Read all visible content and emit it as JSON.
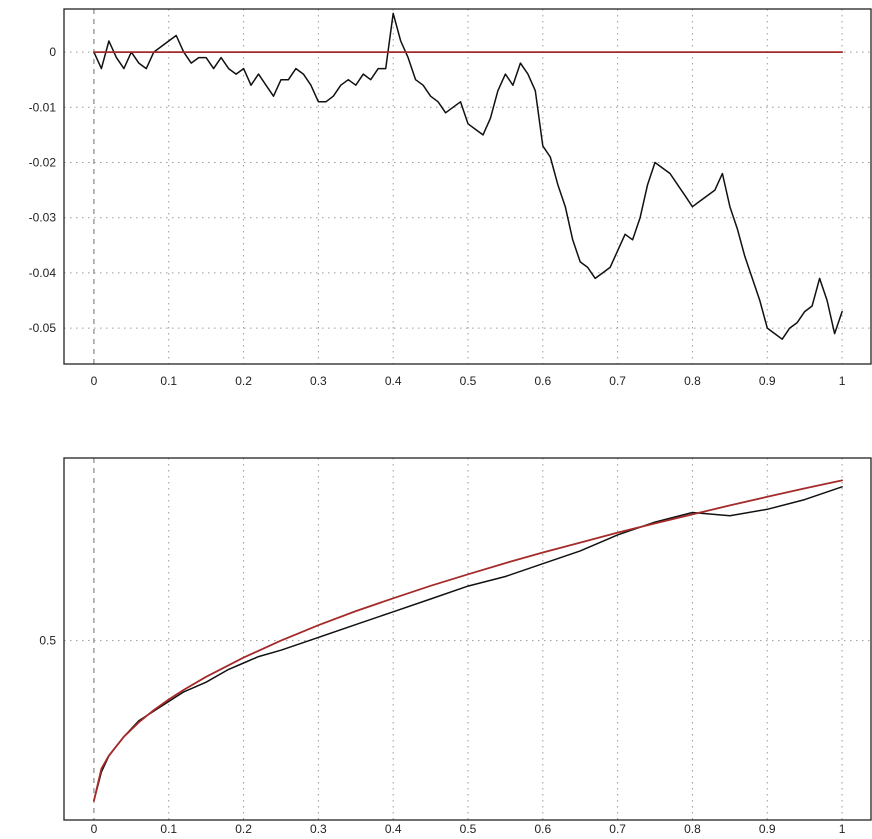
{
  "chart_data": [
    {
      "type": "line",
      "title": "",
      "xlabel": "",
      "ylabel": "",
      "xlim": [
        -0.04,
        1.04
      ],
      "ylim": [
        -0.0565,
        0.0078
      ],
      "x_ticks": [
        0,
        0.1,
        0.2,
        0.3,
        0.4,
        0.5,
        0.6,
        0.7,
        0.8,
        0.9,
        1
      ],
      "x_tick_labels": [
        "0",
        "0.1",
        "0.2",
        "0.3",
        "0.4",
        "0.5",
        "0.6",
        "0.7",
        "0.8",
        "0.9",
        "1"
      ],
      "y_ticks": [
        0,
        -0.01,
        -0.02,
        -0.03,
        -0.04,
        -0.05
      ],
      "y_tick_labels": [
        "0",
        "-0.01",
        "-0.02",
        "-0.03",
        "-0.04",
        "-0.05"
      ],
      "grid": true,
      "series": [
        {
          "color": "#111111",
          "x": [
            0,
            0.01,
            0.02,
            0.03,
            0.04,
            0.05,
            0.06,
            0.07,
            0.08,
            0.09,
            0.1,
            0.11,
            0.12,
            0.13,
            0.14,
            0.15,
            0.16,
            0.17,
            0.18,
            0.19,
            0.2,
            0.21,
            0.22,
            0.23,
            0.24,
            0.25,
            0.26,
            0.27,
            0.28,
            0.29,
            0.3,
            0.31,
            0.32,
            0.33,
            0.34,
            0.35,
            0.36,
            0.37,
            0.38,
            0.39,
            0.4,
            0.41,
            0.42,
            0.43,
            0.44,
            0.45,
            0.46,
            0.47,
            0.48,
            0.49,
            0.5,
            0.51,
            0.52,
            0.53,
            0.54,
            0.55,
            0.56,
            0.57,
            0.58,
            0.59,
            0.6,
            0.61,
            0.62,
            0.63,
            0.64,
            0.65,
            0.66,
            0.67,
            0.68,
            0.69,
            0.7,
            0.71,
            0.72,
            0.73,
            0.74,
            0.75,
            0.76,
            0.77,
            0.78,
            0.79,
            0.8,
            0.81,
            0.82,
            0.83,
            0.84,
            0.85,
            0.86,
            0.87,
            0.88,
            0.89,
            0.9,
            0.91,
            0.92,
            0.93,
            0.94,
            0.95,
            0.96,
            0.97,
            0.98,
            0.99,
            1
          ],
          "y": [
            0,
            -0.003,
            0.002,
            -0.001,
            -0.003,
            0.0,
            -0.002,
            -0.003,
            0.0,
            0.001,
            0.002,
            0.003,
            0.0,
            -0.002,
            -0.001,
            -0.001,
            -0.003,
            -0.001,
            -0.003,
            -0.004,
            -0.003,
            -0.006,
            -0.004,
            -0.006,
            -0.008,
            -0.005,
            -0.005,
            -0.003,
            -0.004,
            -0.006,
            -0.009,
            -0.009,
            -0.008,
            -0.006,
            -0.005,
            -0.006,
            -0.004,
            -0.005,
            -0.003,
            -0.003,
            0.007,
            0.002,
            -0.001,
            -0.005,
            -0.006,
            -0.008,
            -0.009,
            -0.011,
            -0.01,
            -0.009,
            -0.013,
            -0.014,
            -0.015,
            -0.012,
            -0.007,
            -0.004,
            -0.006,
            -0.002,
            -0.004,
            -0.007,
            -0.017,
            -0.019,
            -0.024,
            -0.028,
            -0.034,
            -0.038,
            -0.039,
            -0.041,
            -0.04,
            -0.039,
            -0.036,
            -0.033,
            -0.034,
            -0.03,
            -0.024,
            -0.02,
            -0.021,
            -0.022,
            -0.024,
            -0.026,
            -0.028,
            -0.027,
            -0.026,
            -0.025,
            -0.022,
            -0.028,
            -0.032,
            -0.037,
            -0.041,
            -0.045,
            -0.05,
            -0.051,
            -0.052,
            -0.05,
            -0.049,
            -0.047,
            -0.046,
            -0.041,
            -0.045,
            -0.051,
            -0.047
          ]
        },
        {
          "color": "#a52a2a",
          "x": [
            0,
            1
          ],
          "y": [
            0,
            0
          ]
        }
      ]
    },
    {
      "type": "line",
      "title": "",
      "xlabel": "",
      "ylabel": "",
      "xlim": [
        -0.04,
        1.04
      ],
      "ylim": [
        -0.06,
        1.07
      ],
      "x_ticks": [
        0,
        0.1,
        0.2,
        0.3,
        0.4,
        0.5,
        0.6,
        0.7,
        0.8,
        0.9,
        1
      ],
      "x_tick_labels": [
        "0",
        "0.1",
        "0.2",
        "0.3",
        "0.4",
        "0.5",
        "0.6",
        "0.7",
        "0.8",
        "0.9",
        "1"
      ],
      "y_ticks": [
        0.5
      ],
      "y_tick_labels": [
        "0.5"
      ],
      "grid": true,
      "series": [
        {
          "color": "#111111",
          "x": [
            0,
            0.01,
            0.02,
            0.04,
            0.06,
            0.08,
            0.1,
            0.12,
            0.15,
            0.18,
            0.2,
            0.22,
            0.25,
            0.3,
            0.35,
            0.4,
            0.45,
            0.5,
            0.55,
            0.6,
            0.65,
            0.7,
            0.75,
            0.8,
            0.85,
            0.9,
            0.95,
            1
          ],
          "y": [
            0.0,
            0.09,
            0.14,
            0.2,
            0.25,
            0.28,
            0.31,
            0.34,
            0.37,
            0.41,
            0.43,
            0.45,
            0.47,
            0.51,
            0.55,
            0.59,
            0.63,
            0.67,
            0.7,
            0.74,
            0.78,
            0.83,
            0.87,
            0.9,
            0.89,
            0.91,
            0.94,
            0.98
          ]
        },
        {
          "color": "#a52a2a",
          "x": [
            0,
            0.01,
            0.02,
            0.04,
            0.06,
            0.08,
            0.1,
            0.12,
            0.15,
            0.2,
            0.25,
            0.3,
            0.35,
            0.4,
            0.45,
            0.5,
            0.55,
            0.6,
            0.65,
            0.7,
            0.75,
            0.8,
            0.85,
            0.9,
            0.95,
            1
          ],
          "y": [
            0.0,
            0.1,
            0.141,
            0.2,
            0.245,
            0.283,
            0.316,
            0.346,
            0.387,
            0.447,
            0.5,
            0.548,
            0.592,
            0.632,
            0.671,
            0.707,
            0.742,
            0.775,
            0.806,
            0.837,
            0.866,
            0.894,
            0.922,
            0.949,
            0.975,
            1.0
          ]
        }
      ]
    }
  ]
}
